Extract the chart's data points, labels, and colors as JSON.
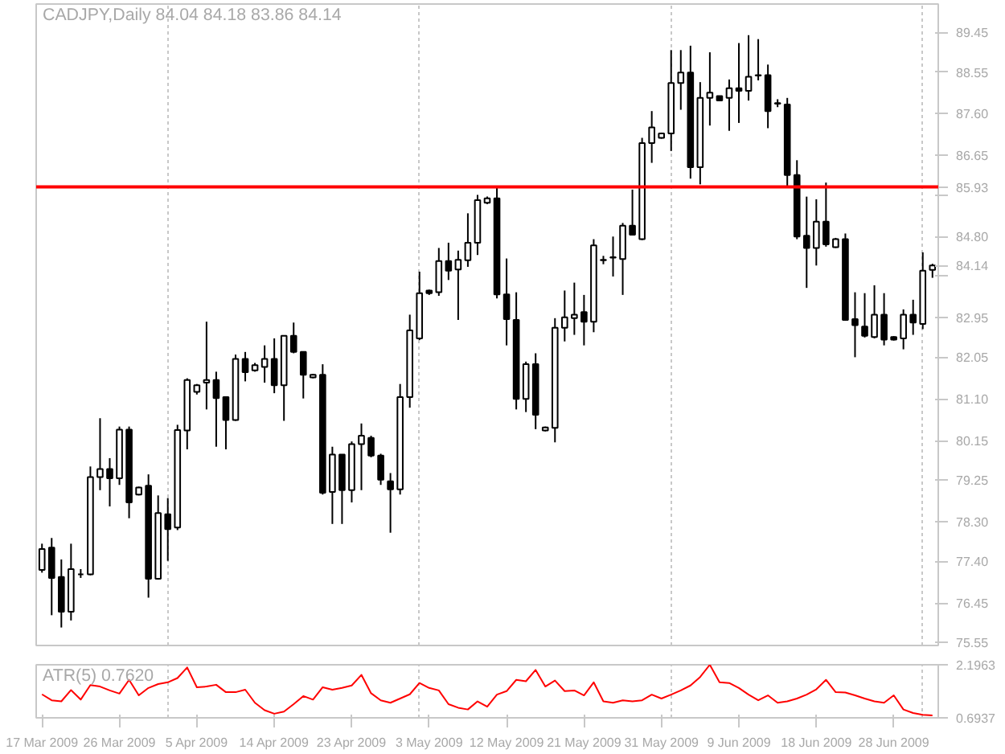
{
  "chart_data": [
    {
      "type": "candlestick",
      "title": "CADJPY,Daily 84.04 84.18 83.86 84.14",
      "categories": [
        null,
        null,
        null,
        null,
        null,
        null,
        null,
        null,
        null,
        null,
        null,
        null,
        null,
        null,
        null,
        null,
        null,
        null,
        null,
        null,
        null,
        null,
        null,
        null,
        null,
        null,
        null,
        null,
        null,
        null,
        null,
        null,
        null,
        null,
        null,
        null,
        null,
        null,
        null,
        null,
        null,
        null,
        null,
        null,
        null,
        null,
        null,
        null,
        null,
        null,
        null,
        null,
        null,
        null,
        null,
        null,
        null,
        null,
        null,
        null,
        null,
        null,
        null,
        null,
        null,
        null,
        null,
        null,
        null,
        null,
        null,
        null,
        null,
        null,
        null,
        null,
        null,
        null,
        null,
        null,
        null,
        null,
        null,
        null,
        null,
        null,
        null,
        null,
        null,
        null,
        null,
        null,
        null
      ],
      "ohlc": [
        [
          77.2,
          77.8,
          77.14,
          77.68
        ],
        [
          77.71,
          77.93,
          76.17,
          77.02
        ],
        [
          77.04,
          77.44,
          75.89,
          76.25
        ],
        [
          76.25,
          77.8,
          76.05,
          77.22
        ],
        [
          77.1,
          77.22,
          77.02,
          77.1
        ],
        [
          77.1,
          79.56,
          77.08,
          79.32
        ],
        [
          79.32,
          80.66,
          79.02,
          79.5
        ],
        [
          79.5,
          79.75,
          78.65,
          79.29
        ],
        [
          79.29,
          80.47,
          79.14,
          80.4
        ],
        [
          80.4,
          80.47,
          78.38,
          78.74
        ],
        [
          78.92,
          79.1,
          78.9,
          79.08
        ],
        [
          79.12,
          79.38,
          76.57,
          77.0
        ],
        [
          77.0,
          78.9,
          76.98,
          78.5
        ],
        [
          78.47,
          78.84,
          77.41,
          78.13
        ],
        [
          78.17,
          80.51,
          78.11,
          80.39
        ],
        [
          80.38,
          81.57,
          79.95,
          81.53
        ],
        [
          81.26,
          81.44,
          81.2,
          81.41
        ],
        [
          81.47,
          82.86,
          80.86,
          81.53
        ],
        [
          81.53,
          81.72,
          80.01,
          81.12
        ],
        [
          81.14,
          81.14,
          79.95,
          80.62
        ],
        [
          80.62,
          82.11,
          80.6,
          82.01
        ],
        [
          82.01,
          82.17,
          81.5,
          81.71
        ],
        [
          81.75,
          81.92,
          81.72,
          81.87
        ],
        [
          81.83,
          82.32,
          81.47,
          82.01
        ],
        [
          82.01,
          82.48,
          81.23,
          81.41
        ],
        [
          81.41,
          82.54,
          80.6,
          82.54
        ],
        [
          82.54,
          82.84,
          82.14,
          82.17
        ],
        [
          82.17,
          82.17,
          81.11,
          81.65
        ],
        [
          81.59,
          81.67,
          81.57,
          81.65
        ],
        [
          81.65,
          81.89,
          78.92,
          78.96
        ],
        [
          78.98,
          80.01,
          78.25,
          79.83
        ],
        [
          79.83,
          79.83,
          78.25,
          79.02
        ],
        [
          79.02,
          80.13,
          78.74,
          80.07
        ],
        [
          80.07,
          80.54,
          79.02,
          80.26
        ],
        [
          80.21,
          80.26,
          79.77,
          79.81
        ],
        [
          79.81,
          79.85,
          79.14,
          79.26
        ],
        [
          79.22,
          79.41,
          78.05,
          79.04
        ],
        [
          79.04,
          81.44,
          78.92,
          81.14
        ],
        [
          81.14,
          83.02,
          80.9,
          82.66
        ],
        [
          82.48,
          84.0,
          82.44,
          83.51
        ],
        [
          83.57,
          83.59,
          83.47,
          83.51
        ],
        [
          83.53,
          84.54,
          83.45,
          84.24
        ],
        [
          84.24,
          84.66,
          83.81,
          84.02
        ],
        [
          84.05,
          84.48,
          82.9,
          84.27
        ],
        [
          84.26,
          85.33,
          84.11,
          84.66
        ],
        [
          84.66,
          85.75,
          84.38,
          85.63
        ],
        [
          85.57,
          85.71,
          85.54,
          85.67
        ],
        [
          85.67,
          85.91,
          83.39,
          83.48
        ],
        [
          83.48,
          84.3,
          82.32,
          82.92
        ],
        [
          82.9,
          83.53,
          80.86,
          81.1
        ],
        [
          81.1,
          81.95,
          80.8,
          81.89
        ],
        [
          81.89,
          82.14,
          80.41,
          80.74
        ],
        [
          80.38,
          80.47,
          80.36,
          80.45
        ],
        [
          80.44,
          82.94,
          80.11,
          82.72
        ],
        [
          82.72,
          83.57,
          82.41,
          82.96
        ],
        [
          82.94,
          83.75,
          82.56,
          83.02
        ],
        [
          83.08,
          83.47,
          82.32,
          82.86
        ],
        [
          82.86,
          84.74,
          82.62,
          84.6
        ],
        [
          84.26,
          84.36,
          84.17,
          84.27
        ],
        [
          84.32,
          84.8,
          83.89,
          84.33
        ],
        [
          84.29,
          85.11,
          83.47,
          85.05
        ],
        [
          85.05,
          85.87,
          84.84,
          84.84
        ],
        [
          84.74,
          87.05,
          84.72,
          86.93
        ],
        [
          86.93,
          87.66,
          86.48,
          87.29
        ],
        [
          87.05,
          87.17,
          87.03,
          87.15
        ],
        [
          87.15,
          89.05,
          86.75,
          88.3
        ],
        [
          88.3,
          89.05,
          87.69,
          88.54
        ],
        [
          88.54,
          89.15,
          86.12,
          86.38
        ],
        [
          86.38,
          88.32,
          85.99,
          87.96
        ],
        [
          87.96,
          89.0,
          87.33,
          88.08
        ],
        [
          88.0,
          88.01,
          87.89,
          87.9
        ],
        [
          87.96,
          88.38,
          87.21,
          88.18
        ],
        [
          88.18,
          89.21,
          87.39,
          88.12
        ],
        [
          88.12,
          89.39,
          87.9,
          88.44
        ],
        [
          88.47,
          89.3,
          88.36,
          88.48
        ],
        [
          88.48,
          88.72,
          87.27,
          87.66
        ],
        [
          87.84,
          87.93,
          87.75,
          87.83
        ],
        [
          87.81,
          87.96,
          85.93,
          86.2
        ],
        [
          86.2,
          86.54,
          84.74,
          84.8
        ],
        [
          84.82,
          85.71,
          83.63,
          84.54
        ],
        [
          84.54,
          85.65,
          84.14,
          85.14
        ],
        [
          85.14,
          86.03,
          84.57,
          84.62
        ],
        [
          84.56,
          84.77,
          84.54,
          84.74
        ],
        [
          84.74,
          84.87,
          82.88,
          82.9
        ],
        [
          82.92,
          83.53,
          82.05,
          82.78
        ],
        [
          82.75,
          83.51,
          82.5,
          82.54
        ],
        [
          82.51,
          83.69,
          82.48,
          83.02
        ],
        [
          83.02,
          83.51,
          82.32,
          82.45
        ],
        [
          82.51,
          82.53,
          82.43,
          82.45
        ],
        [
          82.48,
          83.14,
          82.23,
          83.02
        ],
        [
          83.02,
          83.36,
          82.56,
          82.84
        ],
        [
          82.81,
          84.44,
          82.69,
          84.02
        ],
        [
          84.04,
          84.18,
          83.86,
          84.14
        ]
      ],
      "ylim": [
        75.48,
        90.1
      ],
      "yticks": [
        89.45,
        88.55,
        {
          "value": 87.6,
          "label": "87.60"
        },
        86.65,
        {
          "value": 85.75,
          "label": null
        },
        {
          "value": 84.8,
          "label": "84.80"
        },
        84.14,
        {
          "value": 83.9,
          "label": null
        },
        82.95,
        82.05,
        {
          "value": 81.1,
          "label": "81.10"
        },
        80.15,
        79.25,
        {
          "value": 78.3,
          "label": "78.30"
        },
        {
          "value": 77.4,
          "label": "77.40"
        },
        76.45,
        75.55
      ],
      "grid": "x",
      "tick_labels": "y",
      "ref_lines": [
        {
          "axis": "y",
          "value": 85.93,
          "label": "85.93",
          "color": "#ff0000"
        }
      ]
    },
    {
      "type": "line",
      "title": "ATR(5) 0.7620",
      "categories": [
        "17 Mar 2009",
        null,
        null,
        null,
        null,
        null,
        null,
        null,
        "26 Mar 2009",
        null,
        null,
        null,
        null,
        null,
        null,
        null,
        "5 Apr 2009",
        null,
        null,
        null,
        null,
        null,
        null,
        null,
        "14 Apr 2009",
        null,
        null,
        null,
        null,
        null,
        null,
        null,
        "23 Apr 2009",
        null,
        null,
        null,
        null,
        null,
        null,
        null,
        "3 May 2009",
        null,
        null,
        null,
        null,
        null,
        null,
        null,
        "12 May 2009",
        null,
        null,
        null,
        null,
        null,
        null,
        null,
        "21 May 2009",
        null,
        null,
        null,
        null,
        null,
        null,
        null,
        "31 May 2009",
        null,
        null,
        null,
        null,
        null,
        null,
        null,
        "9 Jun 2009",
        null,
        null,
        null,
        null,
        null,
        null,
        null,
        "18 Jun 2009",
        null,
        null,
        null,
        null,
        null,
        null,
        null,
        "28 Jun 2009",
        null,
        null,
        null,
        null
      ],
      "series": [
        {
          "color": "#ff0000",
          "values": [
            1.36,
            1.19,
            1.16,
            1.48,
            1.21,
            1.62,
            1.58,
            1.47,
            1.38,
            1.77,
            1.33,
            1.54,
            1.65,
            1.7,
            1.82,
            2.12,
            1.56,
            1.58,
            1.63,
            1.42,
            1.42,
            1.49,
            1.12,
            0.91,
            0.81,
            0.87,
            1.08,
            1.31,
            1.21,
            1.56,
            1.49,
            1.54,
            1.61,
            1.91,
            1.39,
            1.19,
            1.12,
            1.24,
            1.36,
            1.68,
            1.54,
            1.47,
            1.08,
            0.98,
            0.93,
            1.16,
            1.01,
            1.35,
            1.45,
            1.77,
            1.73,
            2.05,
            1.58,
            1.75,
            1.45,
            1.47,
            1.33,
            1.7,
            1.16,
            1.12,
            1.19,
            1.16,
            1.19,
            1.35,
            1.24,
            1.35,
            1.47,
            1.61,
            1.85,
            2.1963,
            1.7,
            1.68,
            1.54,
            1.35,
            1.19,
            1.33,
            1.12,
            1.16,
            1.24,
            1.35,
            1.5,
            1.77,
            1.42,
            1.41,
            1.33,
            1.24,
            1.16,
            1.12,
            1.33,
            0.93,
            0.83,
            0.78,
            0.762
          ]
        }
      ],
      "ylim": [
        0.6937,
        2.1963
      ],
      "yticks": [
        2.1963,
        0.6937
      ],
      "grid": "x"
    }
  ]
}
